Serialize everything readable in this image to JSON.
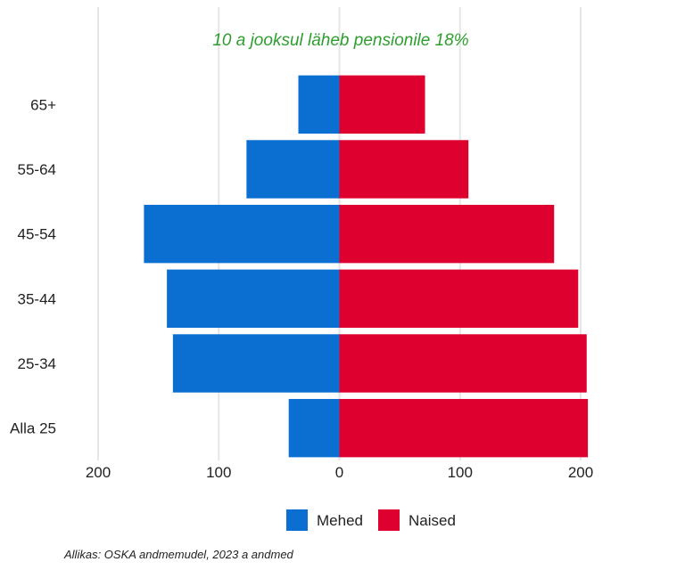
{
  "chart_data": {
    "type": "bar",
    "orientation": "horizontal-population-pyramid",
    "categories": [
      "65+",
      "55-64",
      "45-54",
      "35-44",
      "25-34",
      "Alla 25"
    ],
    "series": [
      {
        "name": "Mehed",
        "values": [
          34,
          77,
          162,
          143,
          138,
          42
        ],
        "color": "#0a6fd1"
      },
      {
        "name": "Naised",
        "values": [
          71,
          107,
          178,
          198,
          205,
          206
        ],
        "color": "#de002f"
      }
    ],
    "xlim": [
      -200,
      200
    ],
    "xticks": [
      -200,
      -100,
      0,
      100,
      200
    ],
    "xtick_labels": [
      "200",
      "100",
      "0",
      "100",
      "200"
    ],
    "annotation": "10 a jooksul läheb pensionile 18%",
    "annotation_color": "#2e9e2e",
    "grid": "vertical",
    "legend": "bottom-center"
  },
  "source_note": "Allikas: OSKA andmemudel, 2023 a andmed"
}
